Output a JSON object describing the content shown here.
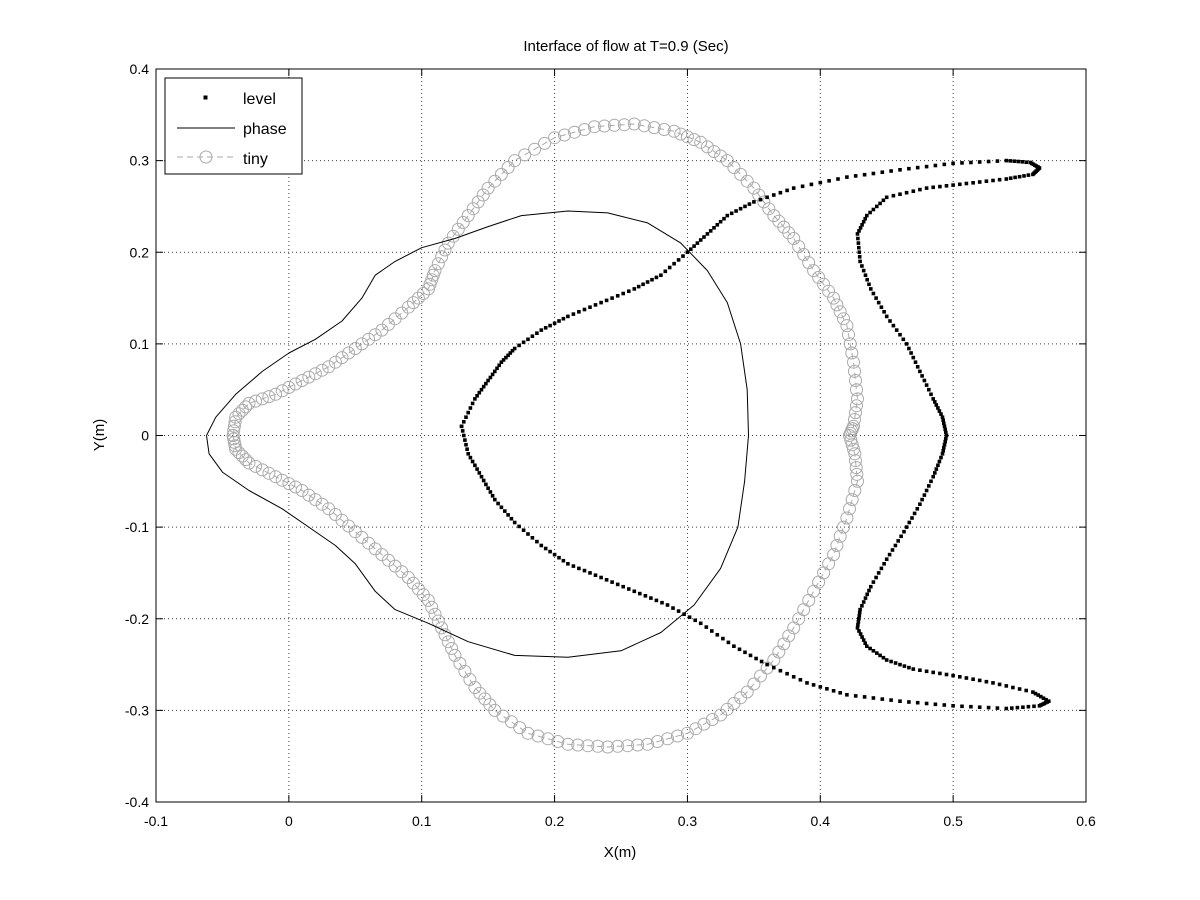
{
  "chart_data": {
    "type": "line",
    "title": "Interface of flow at T=0.9 (Sec)",
    "xlabel": "X(m)",
    "ylabel": "Y(m)",
    "xlim": [
      -0.1,
      0.6
    ],
    "ylim": [
      -0.4,
      0.4
    ],
    "xticks": [
      -0.1,
      0,
      0.1,
      0.2,
      0.3,
      0.4,
      0.5,
      0.6
    ],
    "yticks": [
      -0.4,
      -0.3,
      -0.2,
      -0.1,
      0,
      0.1,
      0.2,
      0.3,
      0.4
    ],
    "xtick_labels": [
      "-0.1",
      "0",
      "0.1",
      "0.2",
      "0.3",
      "0.4",
      "0.5",
      "0.6"
    ],
    "ytick_labels": [
      "-0.4",
      "-0.3",
      "-0.2",
      "-0.1",
      "0",
      "0.1",
      "0.2",
      "0.3",
      "0.4"
    ],
    "grid": true,
    "legend_position": "top-left",
    "series": [
      {
        "name": "level",
        "style": "dotted markers",
        "color": "#000000",
        "points": [
          [
            0.13,
            0.01
          ],
          [
            0.14,
            0.04
          ],
          [
            0.15,
            0.06
          ],
          [
            0.16,
            0.08
          ],
          [
            0.17,
            0.095
          ],
          [
            0.19,
            0.115
          ],
          [
            0.21,
            0.13
          ],
          [
            0.235,
            0.145
          ],
          [
            0.26,
            0.16
          ],
          [
            0.28,
            0.175
          ],
          [
            0.3,
            0.2
          ],
          [
            0.315,
            0.22
          ],
          [
            0.33,
            0.24
          ],
          [
            0.35,
            0.255
          ],
          [
            0.38,
            0.27
          ],
          [
            0.42,
            0.282
          ],
          [
            0.46,
            0.29
          ],
          [
            0.5,
            0.297
          ],
          [
            0.54,
            0.3
          ],
          [
            0.558,
            0.298
          ],
          [
            0.565,
            0.292
          ],
          [
            0.56,
            0.285
          ],
          [
            0.54,
            0.28
          ],
          [
            0.51,
            0.275
          ],
          [
            0.48,
            0.27
          ],
          [
            0.45,
            0.26
          ],
          [
            0.435,
            0.24
          ],
          [
            0.428,
            0.22
          ],
          [
            0.43,
            0.19
          ],
          [
            0.438,
            0.16
          ],
          [
            0.45,
            0.13
          ],
          [
            0.465,
            0.1
          ],
          [
            0.475,
            0.07
          ],
          [
            0.485,
            0.04
          ],
          [
            0.492,
            0.02
          ],
          [
            0.495,
            0.0
          ],
          [
            0.492,
            -0.02
          ],
          [
            0.485,
            -0.045
          ],
          [
            0.475,
            -0.075
          ],
          [
            0.463,
            -0.105
          ],
          [
            0.45,
            -0.135
          ],
          [
            0.438,
            -0.165
          ],
          [
            0.43,
            -0.19
          ],
          [
            0.428,
            -0.21
          ],
          [
            0.435,
            -0.23
          ],
          [
            0.45,
            -0.245
          ],
          [
            0.47,
            -0.255
          ],
          [
            0.5,
            -0.262
          ],
          [
            0.53,
            -0.27
          ],
          [
            0.56,
            -0.28
          ],
          [
            0.572,
            -0.29
          ],
          [
            0.565,
            -0.295
          ],
          [
            0.54,
            -0.298
          ],
          [
            0.5,
            -0.295
          ],
          [
            0.46,
            -0.29
          ],
          [
            0.42,
            -0.283
          ],
          [
            0.39,
            -0.27
          ],
          [
            0.36,
            -0.25
          ],
          [
            0.335,
            -0.23
          ],
          [
            0.31,
            -0.205
          ],
          [
            0.285,
            -0.185
          ],
          [
            0.26,
            -0.17
          ],
          [
            0.235,
            -0.155
          ],
          [
            0.21,
            -0.14
          ],
          [
            0.19,
            -0.12
          ],
          [
            0.17,
            -0.095
          ],
          [
            0.155,
            -0.07
          ],
          [
            0.145,
            -0.045
          ],
          [
            0.135,
            -0.02
          ],
          [
            0.13,
            0.01
          ]
        ]
      },
      {
        "name": "phase",
        "style": "solid thin line",
        "color": "#000000",
        "points": [
          [
            -0.062,
            0.0
          ],
          [
            -0.055,
            0.02
          ],
          [
            -0.04,
            0.045
          ],
          [
            -0.02,
            0.07
          ],
          [
            0.0,
            0.09
          ],
          [
            0.02,
            0.105
          ],
          [
            0.04,
            0.125
          ],
          [
            0.055,
            0.15
          ],
          [
            0.065,
            0.175
          ],
          [
            0.08,
            0.19
          ],
          [
            0.1,
            0.205
          ],
          [
            0.125,
            0.215
          ],
          [
            0.15,
            0.228
          ],
          [
            0.175,
            0.24
          ],
          [
            0.21,
            0.245
          ],
          [
            0.24,
            0.243
          ],
          [
            0.27,
            0.232
          ],
          [
            0.295,
            0.21
          ],
          [
            0.315,
            0.18
          ],
          [
            0.33,
            0.145
          ],
          [
            0.34,
            0.1
          ],
          [
            0.345,
            0.05
          ],
          [
            0.346,
            0.0
          ],
          [
            0.343,
            -0.05
          ],
          [
            0.338,
            -0.1
          ],
          [
            0.325,
            -0.145
          ],
          [
            0.305,
            -0.185
          ],
          [
            0.28,
            -0.215
          ],
          [
            0.25,
            -0.235
          ],
          [
            0.21,
            -0.242
          ],
          [
            0.17,
            -0.24
          ],
          [
            0.135,
            -0.225
          ],
          [
            0.105,
            -0.205
          ],
          [
            0.08,
            -0.19
          ],
          [
            0.065,
            -0.17
          ],
          [
            0.05,
            -0.14
          ],
          [
            0.035,
            -0.12
          ],
          [
            0.015,
            -0.1
          ],
          [
            -0.005,
            -0.08
          ],
          [
            -0.03,
            -0.06
          ],
          [
            -0.05,
            -0.04
          ],
          [
            -0.06,
            -0.02
          ],
          [
            -0.062,
            0.0
          ]
        ]
      },
      {
        "name": "tiny",
        "style": "dashed line with circle markers",
        "color": "#aaaaaa",
        "points": [
          [
            -0.042,
            0.0
          ],
          [
            -0.04,
            0.02
          ],
          [
            -0.03,
            0.035
          ],
          [
            -0.01,
            0.045
          ],
          [
            0.01,
            0.06
          ],
          [
            0.03,
            0.075
          ],
          [
            0.05,
            0.095
          ],
          [
            0.07,
            0.115
          ],
          [
            0.09,
            0.14
          ],
          [
            0.105,
            0.16
          ],
          [
            0.11,
            0.18
          ],
          [
            0.12,
            0.21
          ],
          [
            0.135,
            0.24
          ],
          [
            0.15,
            0.27
          ],
          [
            0.17,
            0.3
          ],
          [
            0.2,
            0.325
          ],
          [
            0.23,
            0.337
          ],
          [
            0.26,
            0.34
          ],
          [
            0.29,
            0.332
          ],
          [
            0.31,
            0.32
          ],
          [
            0.33,
            0.3
          ],
          [
            0.35,
            0.27
          ],
          [
            0.365,
            0.24
          ],
          [
            0.38,
            0.215
          ],
          [
            0.395,
            0.18
          ],
          [
            0.41,
            0.15
          ],
          [
            0.42,
            0.12
          ],
          [
            0.425,
            0.08
          ],
          [
            0.428,
            0.04
          ],
          [
            0.425,
            0.01
          ],
          [
            0.422,
            0.0
          ],
          [
            0.426,
            -0.02
          ],
          [
            0.428,
            -0.05
          ],
          [
            0.42,
            -0.09
          ],
          [
            0.41,
            -0.13
          ],
          [
            0.395,
            -0.17
          ],
          [
            0.38,
            -0.21
          ],
          [
            0.365,
            -0.245
          ],
          [
            0.345,
            -0.28
          ],
          [
            0.325,
            -0.305
          ],
          [
            0.3,
            -0.325
          ],
          [
            0.27,
            -0.337
          ],
          [
            0.24,
            -0.34
          ],
          [
            0.21,
            -0.337
          ],
          [
            0.18,
            -0.325
          ],
          [
            0.155,
            -0.3
          ],
          [
            0.14,
            -0.275
          ],
          [
            0.125,
            -0.24
          ],
          [
            0.115,
            -0.21
          ],
          [
            0.105,
            -0.18
          ],
          [
            0.09,
            -0.155
          ],
          [
            0.07,
            -0.13
          ],
          [
            0.05,
            -0.105
          ],
          [
            0.03,
            -0.08
          ],
          [
            0.01,
            -0.06
          ],
          [
            -0.01,
            -0.045
          ],
          [
            -0.03,
            -0.03
          ],
          [
            -0.04,
            -0.015
          ],
          [
            -0.042,
            0.0
          ]
        ]
      }
    ]
  }
}
